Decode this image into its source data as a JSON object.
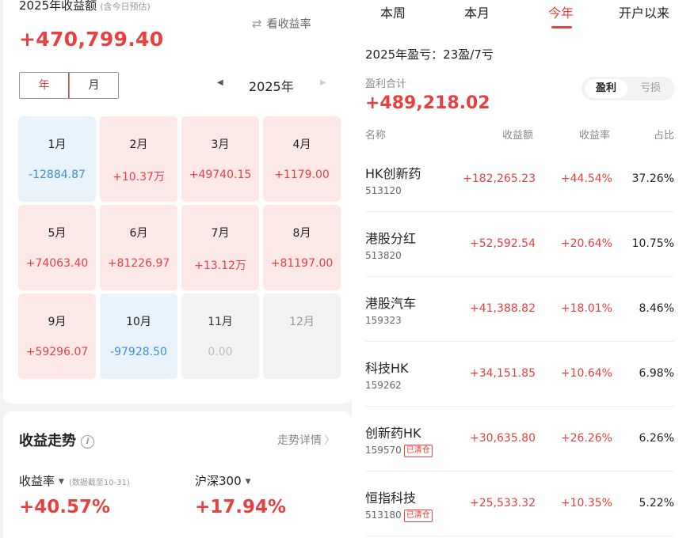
{
  "left": {
    "title": "2025年收益额",
    "title_hint": "(含今日预估)",
    "total_amount": "+470,799.40",
    "rate_toggle_label": "看收益率",
    "period_tabs": [
      "年",
      "月"
    ],
    "year": "2025年",
    "months": [
      {
        "label": "1月",
        "value": "-12884.87",
        "kind": "neg"
      },
      {
        "label": "2月",
        "value": "+10.37万",
        "kind": "pos"
      },
      {
        "label": "3月",
        "value": "+49740.15",
        "kind": "pos"
      },
      {
        "label": "4月",
        "value": "+1179.00",
        "kind": "pos"
      },
      {
        "label": "5月",
        "value": "+74063.40",
        "kind": "pos"
      },
      {
        "label": "6月",
        "value": "+81226.97",
        "kind": "pos"
      },
      {
        "label": "7月",
        "value": "+13.12万",
        "kind": "pos"
      },
      {
        "label": "8月",
        "value": "+81197.00",
        "kind": "pos"
      },
      {
        "label": "9月",
        "value": "+59296.07",
        "kind": "pos"
      },
      {
        "label": "10月",
        "value": "-97928.50",
        "kind": "neg"
      },
      {
        "label": "11月",
        "value": "0.00",
        "kind": "nil"
      },
      {
        "label": "12月",
        "value": "",
        "kind": "empty"
      }
    ],
    "trend": {
      "title": "收益走势",
      "detail_link": "走势详情",
      "rate_label": "收益率",
      "rate_note": "(数据截至10-31)",
      "rate_value": "+40.57%",
      "benchmark_label": "沪深300",
      "benchmark_value": "+17.94%"
    }
  },
  "right": {
    "tabs": [
      "本周",
      "本月",
      "今年",
      "开户以来"
    ],
    "active_tab": "今年",
    "summary": "2025年盈亏：23盈/7亏",
    "profit_total_label": "盈利合计",
    "profit_total": "+489,218.02",
    "toggle": {
      "on": "盈利",
      "off": "亏损"
    },
    "columns": {
      "name": "名称",
      "amount": "收益额",
      "rate": "收益率",
      "share": "占比"
    },
    "rows": [
      {
        "name": "HK创新药",
        "code": "513120",
        "badge": "",
        "amount": "+182,265.23",
        "rate": "+44.54%",
        "share": "37.26%"
      },
      {
        "name": "港股分红",
        "code": "513820",
        "badge": "",
        "amount": "+52,592.54",
        "rate": "+20.64%",
        "share": "10.75%"
      },
      {
        "name": "港股汽车",
        "code": "159323",
        "badge": "",
        "amount": "+41,388.82",
        "rate": "+18.01%",
        "share": "8.46%"
      },
      {
        "name": "科技HK",
        "code": "159262",
        "badge": "",
        "amount": "+34,151.85",
        "rate": "+10.64%",
        "share": "6.98%"
      },
      {
        "name": "创新药HK",
        "code": "159570",
        "badge": "已清仓",
        "amount": "+30,635.80",
        "rate": "+26.26%",
        "share": "6.26%"
      },
      {
        "name": "恒指科技",
        "code": "513180",
        "badge": "已清仓",
        "amount": "+25,533.32",
        "rate": "+10.35%",
        "share": "5.22%"
      }
    ]
  }
}
